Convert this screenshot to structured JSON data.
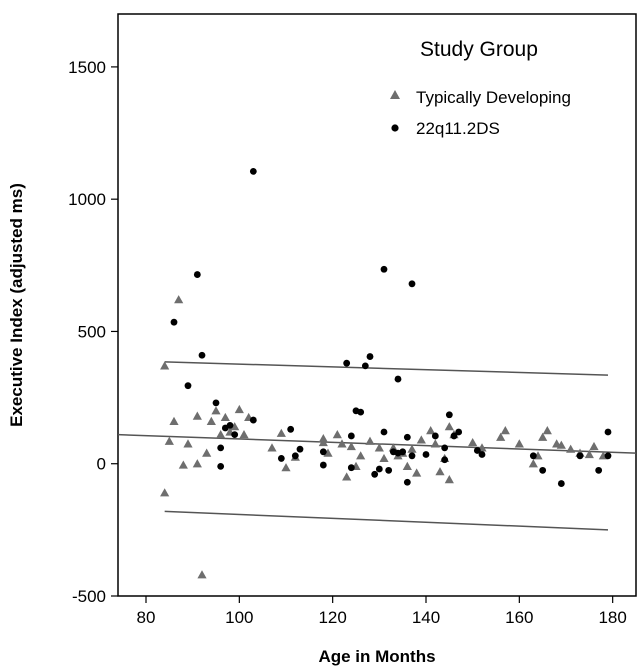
{
  "chart_data": {
    "type": "scatter",
    "title": "",
    "xlabel": "Age in Months",
    "ylabel": "Executive Index (adjusted ms)",
    "xlim": [
      74,
      185
    ],
    "ylim": [
      -500,
      1700
    ],
    "xticks": [
      80,
      100,
      120,
      140,
      160,
      180
    ],
    "yticks": [
      -500,
      0,
      500,
      1000,
      1500
    ],
    "grid": false,
    "legend": {
      "title": "Study Group",
      "placement": "top-right"
    },
    "series": [
      {
        "name": "Typically Developing",
        "marker": "triangle",
        "color": "#6e6e6e",
        "points": [
          [
            84,
            370
          ],
          [
            84,
            -110
          ],
          [
            85,
            85
          ],
          [
            86,
            160
          ],
          [
            87,
            620
          ],
          [
            88,
            -5
          ],
          [
            89,
            75
          ],
          [
            91,
            180
          ],
          [
            91,
            0
          ],
          [
            92,
            -420
          ],
          [
            93,
            40
          ],
          [
            94,
            160
          ],
          [
            95,
            200
          ],
          [
            96,
            110
          ],
          [
            97,
            175
          ],
          [
            98,
            120
          ],
          [
            99,
            140
          ],
          [
            100,
            205
          ],
          [
            101,
            110
          ],
          [
            102,
            175
          ],
          [
            107,
            60
          ],
          [
            109,
            115
          ],
          [
            110,
            -15
          ],
          [
            112,
            25
          ],
          [
            118,
            80
          ],
          [
            118,
            95
          ],
          [
            119,
            40
          ],
          [
            121,
            110
          ],
          [
            122,
            75
          ],
          [
            123,
            -50
          ],
          [
            124,
            65
          ],
          [
            125,
            -10
          ],
          [
            126,
            30
          ],
          [
            128,
            85
          ],
          [
            130,
            60
          ],
          [
            131,
            20
          ],
          [
            133,
            60
          ],
          [
            134,
            30
          ],
          [
            135,
            40
          ],
          [
            136,
            -10
          ],
          [
            137,
            55
          ],
          [
            138,
            -35
          ],
          [
            139,
            90
          ],
          [
            141,
            125
          ],
          [
            142,
            75
          ],
          [
            143,
            -30
          ],
          [
            144,
            20
          ],
          [
            145,
            140
          ],
          [
            145,
            -60
          ],
          [
            146,
            110
          ],
          [
            150,
            80
          ],
          [
            152,
            60
          ],
          [
            156,
            100
          ],
          [
            157,
            125
          ],
          [
            160,
            75
          ],
          [
            163,
            0
          ],
          [
            164,
            30
          ],
          [
            165,
            100
          ],
          [
            166,
            125
          ],
          [
            168,
            75
          ],
          [
            169,
            70
          ],
          [
            171,
            55
          ],
          [
            173,
            40
          ],
          [
            175,
            35
          ],
          [
            176,
            65
          ],
          [
            178,
            30
          ]
        ]
      },
      {
        "name": "22q11.2DS",
        "marker": "circle",
        "color": "#000000",
        "points": [
          [
            86,
            535
          ],
          [
            89,
            295
          ],
          [
            91,
            715
          ],
          [
            92,
            410
          ],
          [
            95,
            230
          ],
          [
            96,
            60
          ],
          [
            96,
            -10
          ],
          [
            97,
            135
          ],
          [
            98,
            145
          ],
          [
            99,
            110
          ],
          [
            103,
            1105
          ],
          [
            103,
            165
          ],
          [
            109,
            20
          ],
          [
            111,
            130
          ],
          [
            112,
            30
          ],
          [
            113,
            55
          ],
          [
            118,
            45
          ],
          [
            118,
            -5
          ],
          [
            123,
            380
          ],
          [
            124,
            105
          ],
          [
            124,
            -15
          ],
          [
            125,
            200
          ],
          [
            126,
            195
          ],
          [
            127,
            370
          ],
          [
            128,
            405
          ],
          [
            129,
            -40
          ],
          [
            130,
            -20
          ],
          [
            131,
            735
          ],
          [
            131,
            120
          ],
          [
            132,
            -25
          ],
          [
            133,
            45
          ],
          [
            134,
            320
          ],
          [
            134,
            40
          ],
          [
            135,
            45
          ],
          [
            136,
            100
          ],
          [
            136,
            -70
          ],
          [
            137,
            680
          ],
          [
            137,
            30
          ],
          [
            140,
            35
          ],
          [
            142,
            105
          ],
          [
            144,
            60
          ],
          [
            144,
            15
          ],
          [
            145,
            185
          ],
          [
            146,
            105
          ],
          [
            147,
            120
          ],
          [
            151,
            50
          ],
          [
            152,
            35
          ],
          [
            163,
            30
          ],
          [
            165,
            -25
          ],
          [
            169,
            -75
          ],
          [
            173,
            30
          ],
          [
            177,
            -25
          ],
          [
            179,
            120
          ],
          [
            179,
            30
          ]
        ]
      }
    ],
    "lines": [
      {
        "name": "fit",
        "color": "#555555",
        "x": [
          74,
          185
        ],
        "y": [
          110,
          40
        ]
      },
      {
        "name": "upper-bound",
        "color": "#555555",
        "x": [
          84,
          179
        ],
        "y": [
          385,
          335
        ]
      },
      {
        "name": "lower-bound",
        "color": "#555555",
        "x": [
          84,
          179
        ],
        "y": [
          -180,
          -250
        ]
      }
    ]
  }
}
